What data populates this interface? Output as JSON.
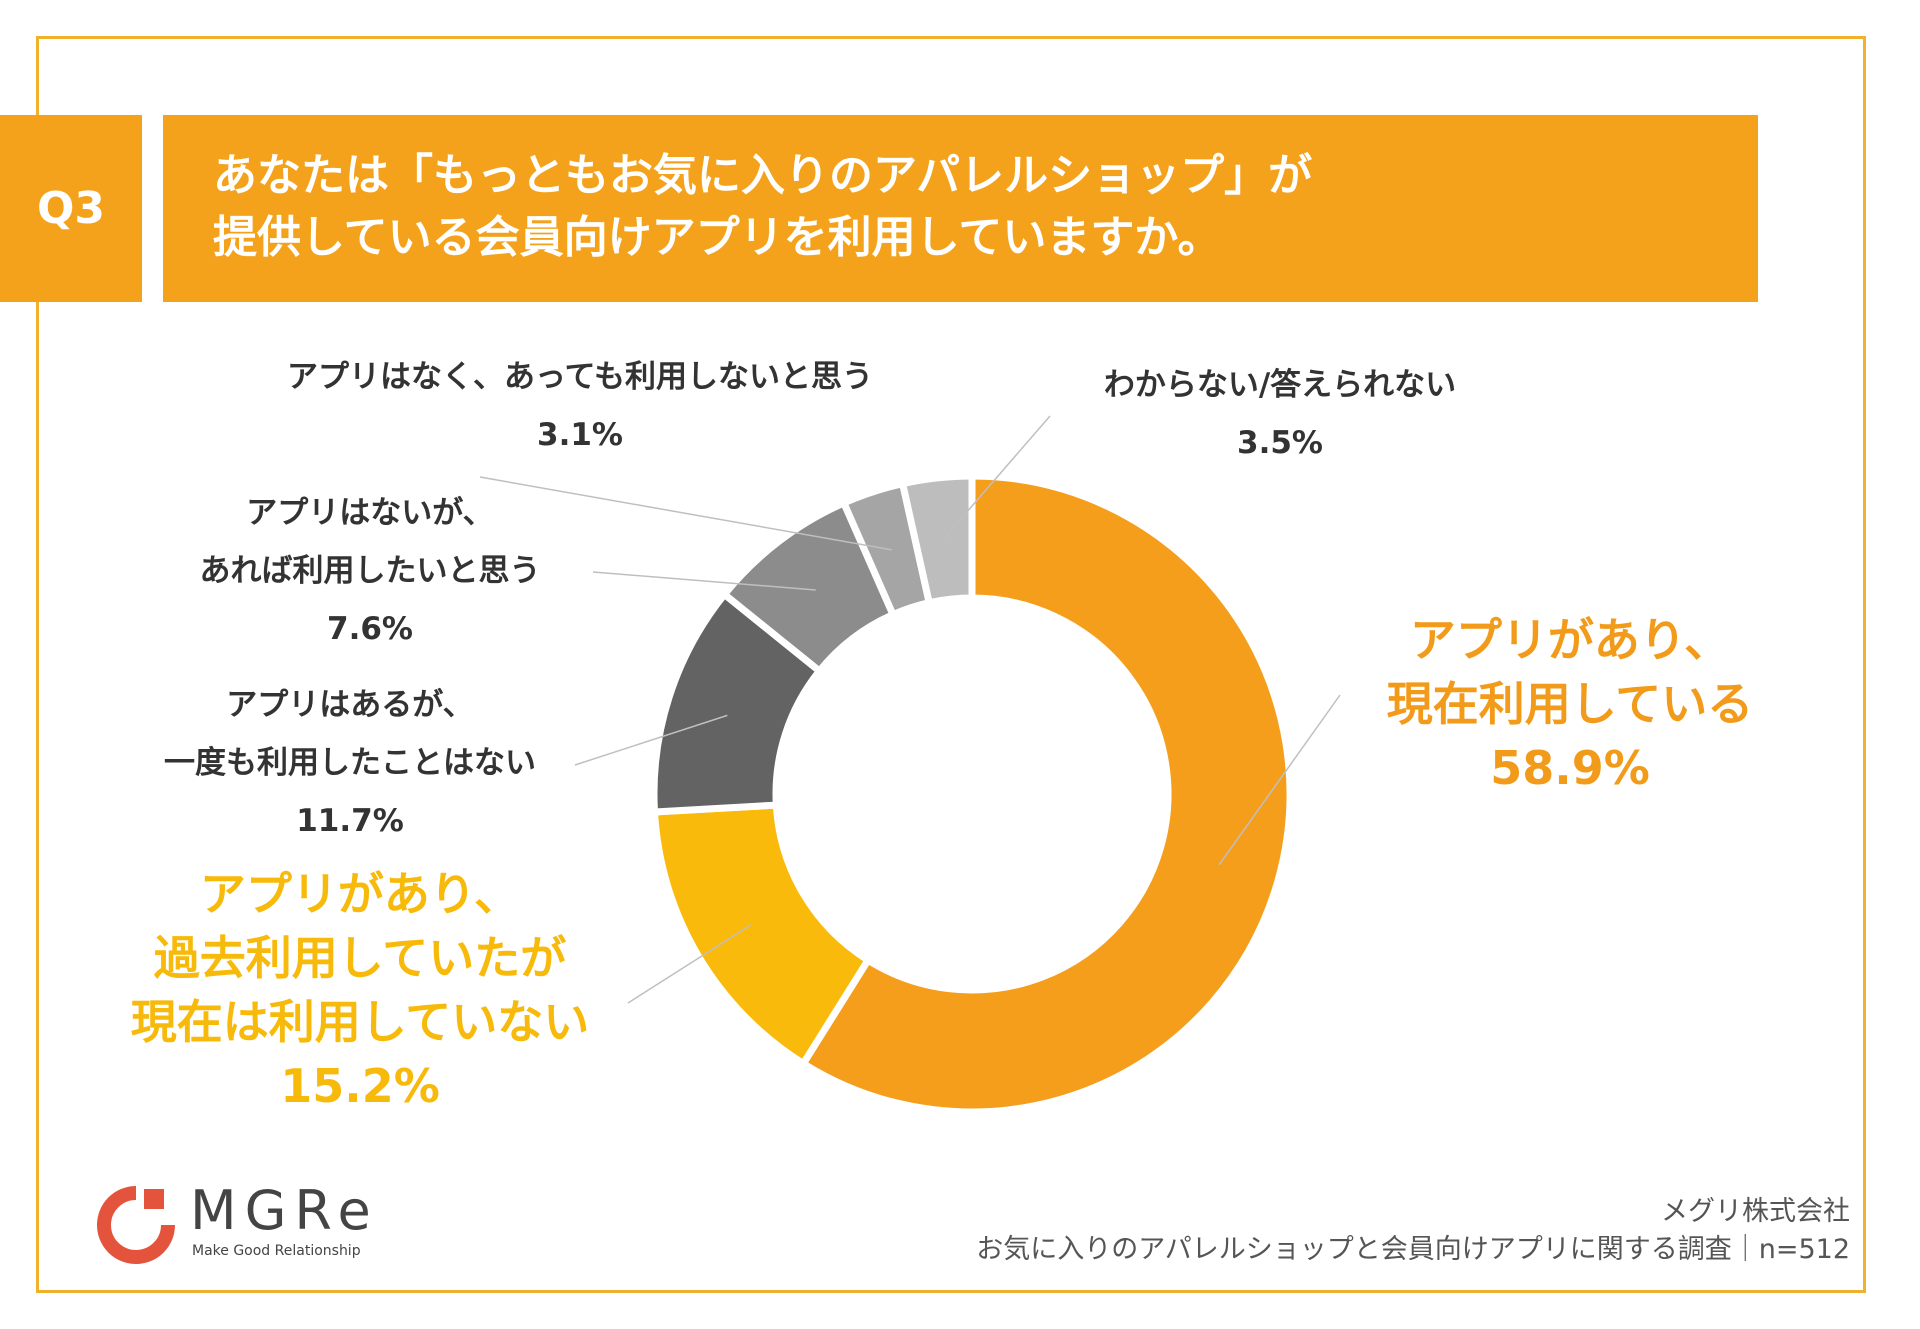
{
  "question": {
    "badge": "Q3",
    "lines": [
      "あなたは「もっともお気に入りのアパレルショップ」が",
      "提供している会員向けアプリを利用していますか。"
    ]
  },
  "colors": {
    "accent": "#F4A21B",
    "frame": "#F0B12E"
  },
  "chart_data": {
    "type": "pie",
    "style": "donut",
    "categories": [
      "アプリがあり、現在利用している",
      "アプリがあり、過去利用していたが現在は利用していない",
      "アプリはあるが、一度も利用したことはない",
      "アプリはないが、あれば利用したいと思う",
      "アプリはなく、あっても利用しないと思う",
      "わからない/答えられない"
    ],
    "values": [
      58.9,
      15.2,
      11.7,
      7.6,
      3.1,
      3.5
    ],
    "unit": "%",
    "colors": [
      "#F59E1B",
      "#F9BA0B",
      "#636363",
      "#8C8C8C",
      "#A5A5A5",
      "#BDBDBD"
    ],
    "labels": [
      {
        "lines": [
          "アプリがあり、",
          "現在利用している"
        ],
        "value": "58.9%"
      },
      {
        "lines": [
          "アプリがあり、",
          "過去利用していたが",
          "現在は利用していない"
        ],
        "value": "15.2%"
      },
      {
        "lines": [
          "アプリはあるが、",
          "一度も利用したことはない"
        ],
        "value": "11.7%"
      },
      {
        "lines": [
          "アプリはないが、",
          "あれば利用したいと思う"
        ],
        "value": "7.6%"
      },
      {
        "lines": [
          "アプリはなく、あっても利用しないと思う"
        ],
        "value": "3.1%"
      },
      {
        "lines": [
          "わからない/答えられない"
        ],
        "value": "3.5%"
      }
    ]
  },
  "footer": {
    "logo_text": "MGRe",
    "logo_tagline": "Make Good Relationship",
    "company": "メグリ株式会社",
    "survey": "お気に入りのアパレルショップと会員向けアプリに関する調査｜n=512"
  }
}
